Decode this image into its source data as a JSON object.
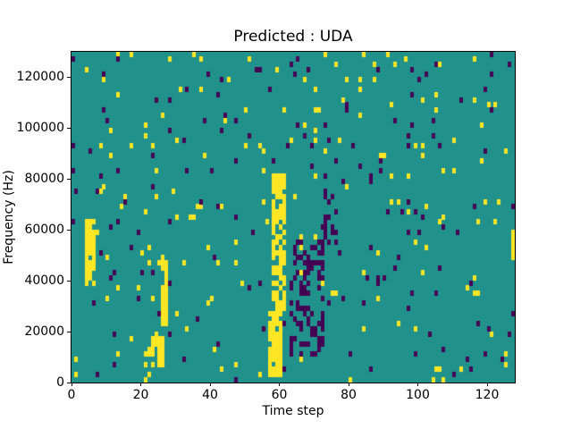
{
  "chart_data": {
    "type": "heatmap",
    "title": "Predicted : UDA",
    "xlabel": "Time step",
    "ylabel": "Frequency (Hz)",
    "xlim": [
      0,
      128
    ],
    "ylim": [
      0,
      130000
    ],
    "x_ticks": [
      0,
      20,
      40,
      60,
      80,
      100,
      120
    ],
    "y_ticks": [
      0,
      20000,
      40000,
      60000,
      80000,
      100000,
      120000
    ],
    "grid": {
      "nx": 128,
      "ny": 65,
      "cell_hz": 2000
    },
    "colors": {
      "mid": "#21918c",
      "low": "#440154",
      "high": "#fde725"
    },
    "value_legend": {
      "low": "class 0 (dark purple)",
      "mid": "background (teal)",
      "high": "class 2 (yellow)"
    },
    "clusters": [
      {
        "x": [
          57,
          60
        ],
        "rows": [
          1,
          13
        ],
        "value": "high",
        "density": 0.95
      },
      {
        "x": [
          58,
          61
        ],
        "rows": [
          14,
          40
        ],
        "value": "high",
        "density": 0.7
      },
      {
        "x": [
          63,
          72
        ],
        "rows": [
          5,
          27
        ],
        "value": "low",
        "density": 0.4
      },
      {
        "x": [
          4,
          6
        ],
        "rows": [
          19,
          31
        ],
        "value": "high",
        "density": 0.85
      },
      {
        "x": [
          21,
          26
        ],
        "rows": [
          3,
          8
        ],
        "value": "high",
        "density": 0.6
      },
      {
        "x": [
          26,
          27
        ],
        "rows": [
          11,
          24
        ],
        "value": "high",
        "density": 0.8
      },
      {
        "x": [
          73,
          76
        ],
        "rows": [
          27,
          38
        ],
        "value": "low",
        "density": 0.3
      },
      {
        "x": [
          127,
          127
        ],
        "rows": [
          24,
          29
        ],
        "value": "high",
        "density": 0.9
      }
    ],
    "noise": {
      "seed": 7,
      "high_count": 175,
      "low_count": 160
    }
  }
}
